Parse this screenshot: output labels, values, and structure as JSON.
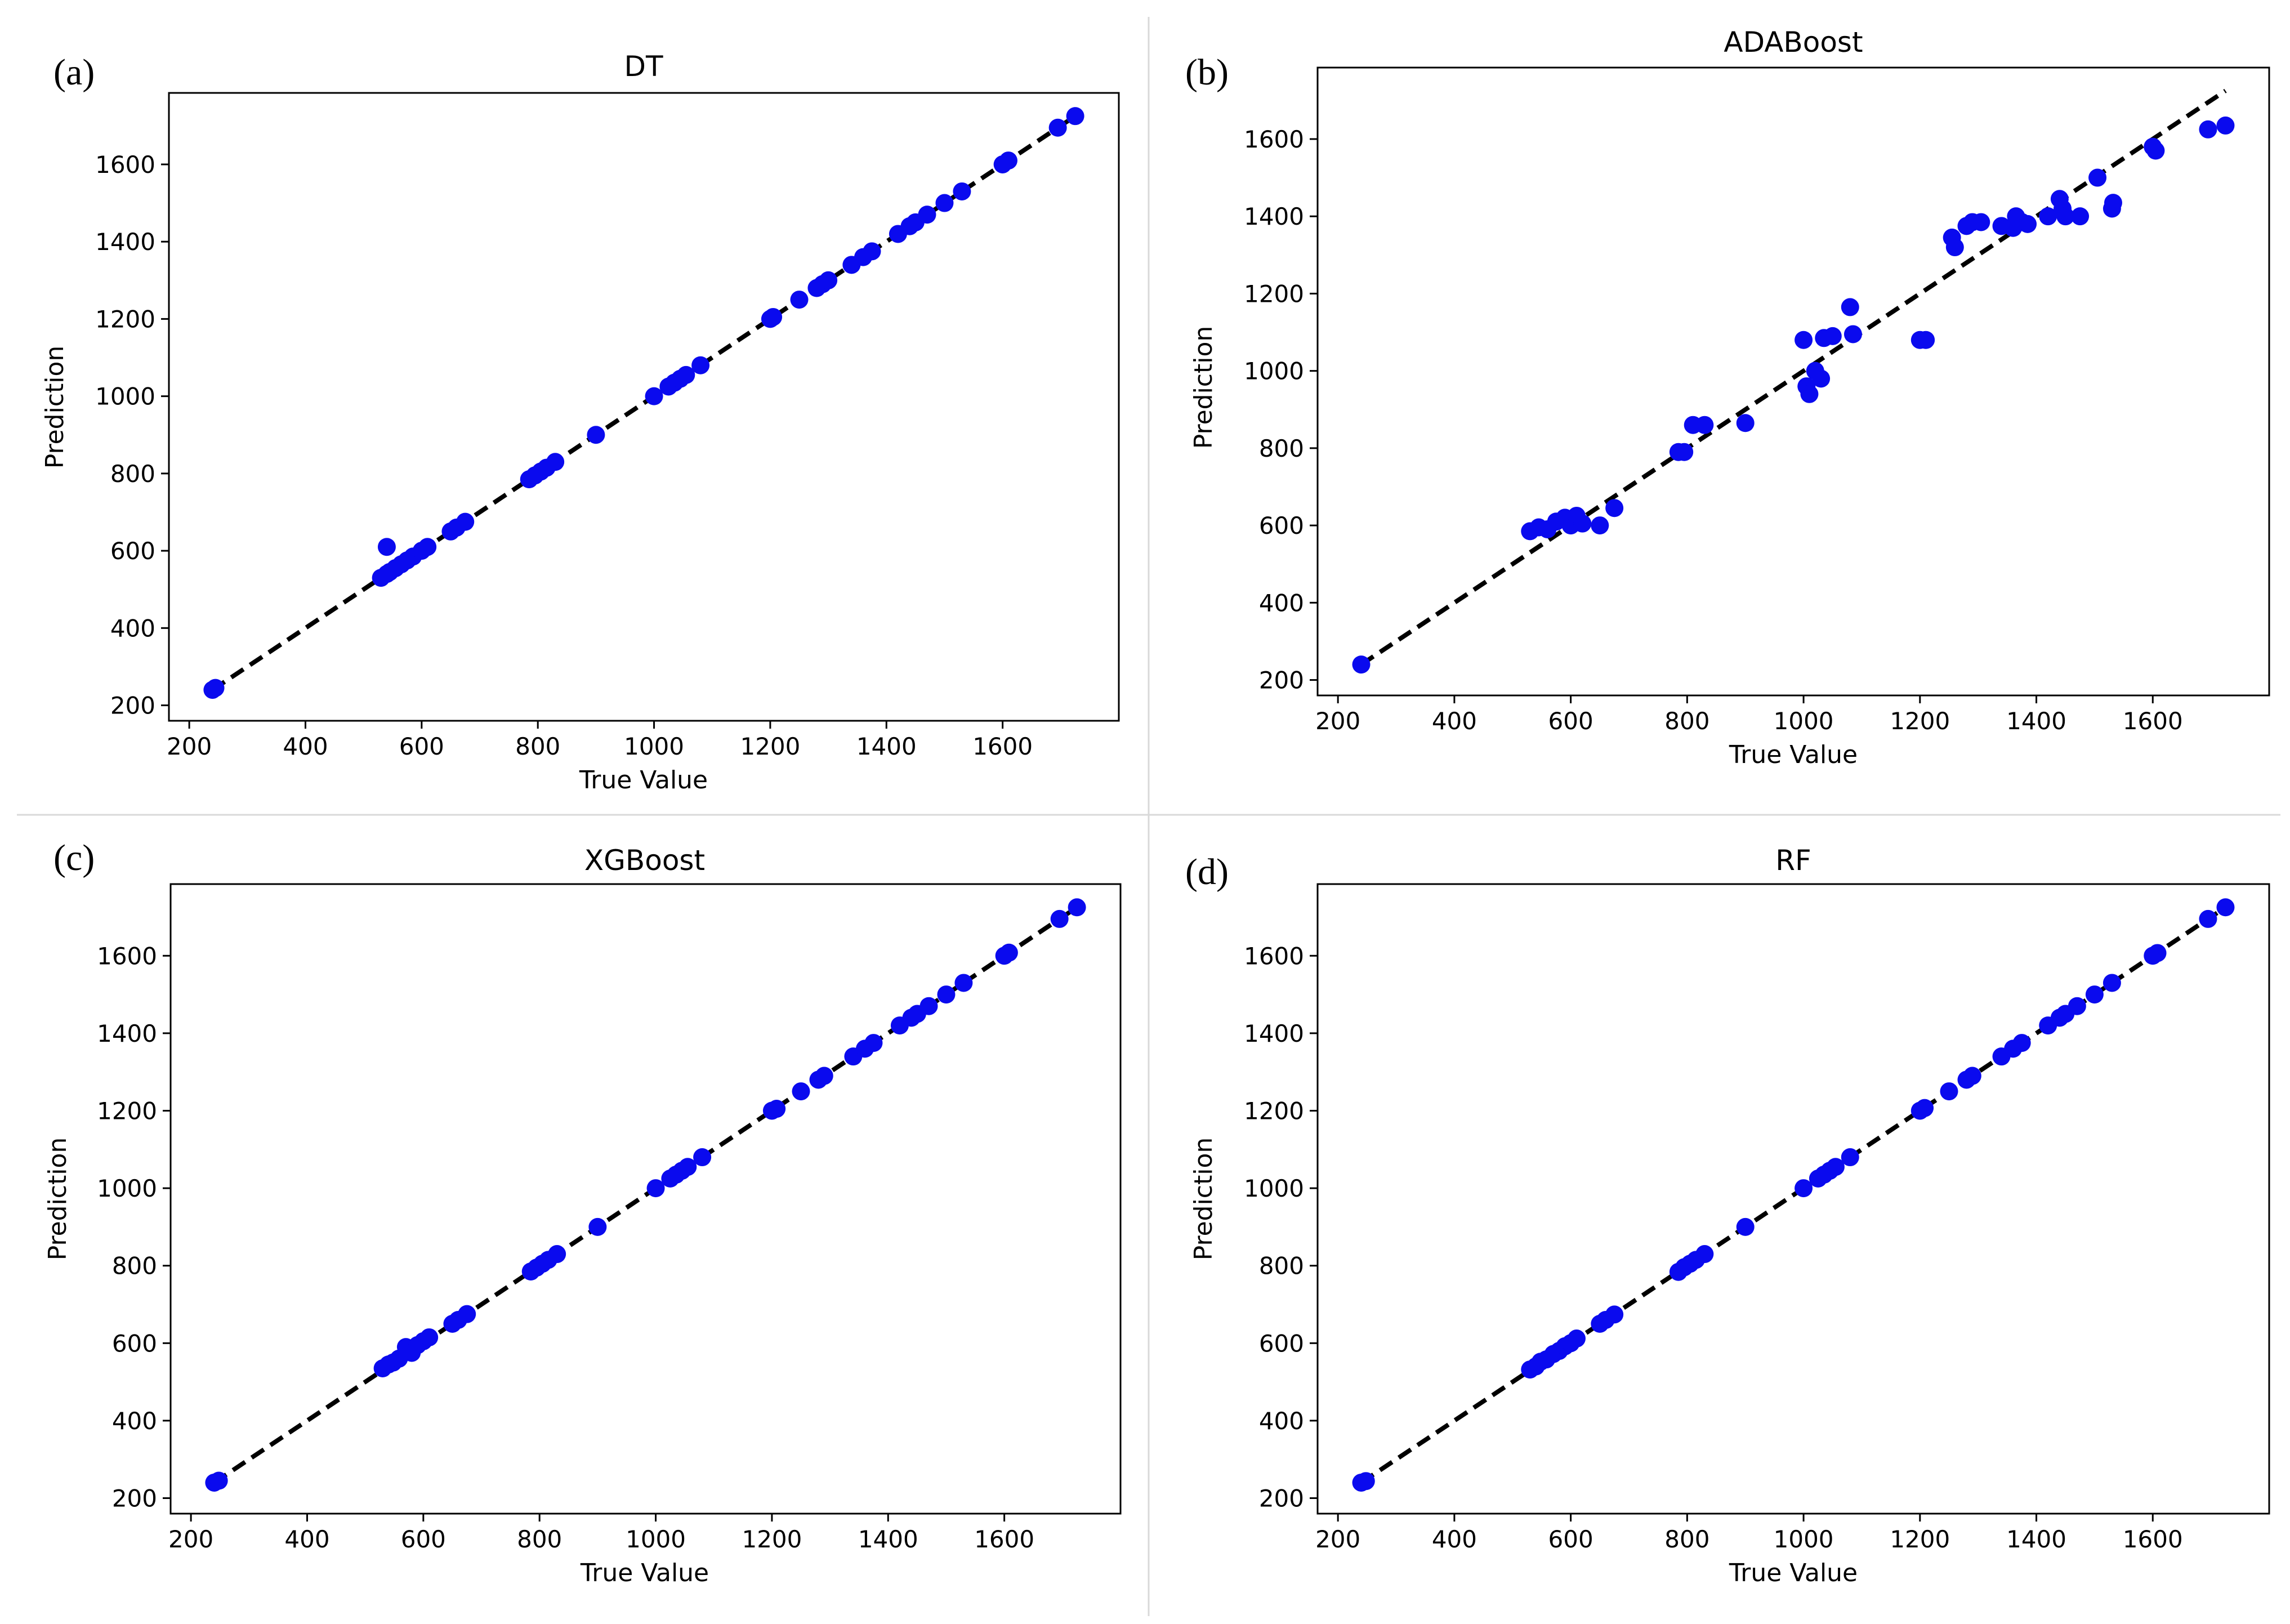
{
  "colors": {
    "points": "#0a0aee",
    "reference_line": "#000000",
    "frame": "#000000",
    "divider": "#d9d9d9"
  },
  "chart_data": [
    {
      "id": "a",
      "panel_label": "(a)",
      "type": "scatter",
      "title": "DT",
      "xlabel": "True Value",
      "ylabel": "Prediction",
      "xlim": [
        165,
        1800
      ],
      "ylim": [
        160,
        1785
      ],
      "xticks": [
        200,
        400,
        600,
        800,
        1000,
        1200,
        1400,
        1600
      ],
      "yticks": [
        200,
        400,
        600,
        800,
        1000,
        1200,
        1400,
        1600
      ],
      "reference_line": {
        "x": [
          240,
          1725
        ],
        "y": [
          240,
          1725
        ],
        "style": "dashed"
      },
      "points": {
        "x": [
          240,
          245,
          530,
          540,
          545,
          555,
          565,
          575,
          585,
          600,
          610,
          540,
          650,
          660,
          675,
          785,
          795,
          805,
          815,
          830,
          900,
          1000,
          1025,
          1035,
          1045,
          1055,
          1080,
          1200,
          1205,
          1250,
          1280,
          1290,
          1300,
          1340,
          1360,
          1375,
          1420,
          1440,
          1450,
          1470,
          1500,
          1530,
          1600,
          1610,
          1695,
          1725
        ],
        "y": [
          240,
          245,
          530,
          540,
          545,
          555,
          565,
          575,
          585,
          600,
          610,
          610,
          650,
          660,
          675,
          785,
          795,
          805,
          815,
          830,
          900,
          1000,
          1025,
          1035,
          1045,
          1055,
          1080,
          1200,
          1205,
          1250,
          1280,
          1290,
          1300,
          1340,
          1360,
          1375,
          1420,
          1440,
          1450,
          1470,
          1500,
          1530,
          1600,
          1610,
          1695,
          1725
        ]
      }
    },
    {
      "id": "b",
      "panel_label": "(b)",
      "type": "scatter",
      "title": "ADABoost",
      "xlabel": "True Value",
      "ylabel": "Prediction",
      "xlim": [
        165,
        1800
      ],
      "ylim": [
        160,
        1785
      ],
      "xticks": [
        200,
        400,
        600,
        800,
        1000,
        1200,
        1400,
        1600
      ],
      "yticks": [
        200,
        400,
        600,
        800,
        1000,
        1200,
        1400,
        1600
      ],
      "reference_line": {
        "x": [
          240,
          1725
        ],
        "y": [
          240,
          1725
        ],
        "style": "dashed"
      },
      "points": {
        "x": [
          240,
          530,
          545,
          560,
          575,
          590,
          600,
          610,
          620,
          650,
          675,
          785,
          795,
          810,
          830,
          900,
          1000,
          1005,
          1010,
          1020,
          1030,
          1035,
          1050,
          1080,
          1085,
          1200,
          1210,
          1255,
          1260,
          1280,
          1290,
          1305,
          1340,
          1360,
          1365,
          1375,
          1385,
          1420,
          1440,
          1445,
          1450,
          1475,
          1505,
          1530,
          1532,
          1600,
          1605,
          1695,
          1725
        ],
        "y": [
          240,
          585,
          595,
          590,
          610,
          620,
          600,
          625,
          605,
          600,
          645,
          790,
          790,
          860,
          860,
          865,
          1080,
          960,
          940,
          1000,
          980,
          1085,
          1090,
          1165,
          1095,
          1080,
          1080,
          1345,
          1320,
          1375,
          1385,
          1385,
          1375,
          1370,
          1400,
          1385,
          1380,
          1400,
          1445,
          1420,
          1400,
          1400,
          1500,
          1420,
          1435,
          1580,
          1570,
          1625,
          1635
        ]
      }
    },
    {
      "id": "c",
      "panel_label": "(c)",
      "type": "scatter",
      "title": "XGBoost",
      "xlabel": "True Value",
      "ylabel": "Prediction",
      "xlim": [
        165,
        1800
      ],
      "ylim": [
        160,
        1785
      ],
      "xticks": [
        200,
        400,
        600,
        800,
        1000,
        1200,
        1400,
        1600
      ],
      "yticks": [
        200,
        400,
        600,
        800,
        1000,
        1200,
        1400,
        1600
      ],
      "reference_line": {
        "x": [
          240,
          1725
        ],
        "y": [
          240,
          1725
        ],
        "style": "dashed"
      },
      "points": {
        "x": [
          240,
          248,
          530,
          540,
          548,
          558,
          570,
          580,
          590,
          600,
          610,
          650,
          660,
          675,
          785,
          795,
          805,
          815,
          830,
          900,
          1000,
          1025,
          1035,
          1045,
          1055,
          1080,
          1200,
          1208,
          1250,
          1280,
          1290,
          1340,
          1360,
          1375,
          1420,
          1440,
          1450,
          1470,
          1500,
          1530,
          1600,
          1608,
          1695,
          1725
        ],
        "y": [
          240,
          245,
          535,
          545,
          550,
          560,
          590,
          575,
          595,
          605,
          615,
          650,
          660,
          675,
          785,
          795,
          805,
          815,
          830,
          900,
          1000,
          1025,
          1035,
          1045,
          1055,
          1080,
          1200,
          1205,
          1250,
          1280,
          1290,
          1340,
          1360,
          1375,
          1420,
          1440,
          1450,
          1470,
          1500,
          1530,
          1600,
          1608,
          1695,
          1725
        ]
      }
    },
    {
      "id": "d",
      "panel_label": "(d)",
      "type": "scatter",
      "title": "RF",
      "xlabel": "True Value",
      "ylabel": "Prediction",
      "xlim": [
        165,
        1800
      ],
      "ylim": [
        160,
        1785
      ],
      "xticks": [
        200,
        400,
        600,
        800,
        1000,
        1200,
        1400,
        1600
      ],
      "yticks": [
        200,
        400,
        600,
        800,
        1000,
        1200,
        1400,
        1600
      ],
      "reference_line": {
        "x": [
          240,
          1725
        ],
        "y": [
          240,
          1725
        ],
        "style": "dashed"
      },
      "points": {
        "x": [
          240,
          248,
          530,
          540,
          548,
          558,
          570,
          580,
          590,
          600,
          610,
          650,
          660,
          675,
          785,
          795,
          805,
          815,
          830,
          900,
          1000,
          1025,
          1035,
          1045,
          1055,
          1080,
          1200,
          1208,
          1250,
          1280,
          1290,
          1340,
          1360,
          1375,
          1420,
          1440,
          1450,
          1470,
          1500,
          1530,
          1600,
          1608,
          1695,
          1725
        ],
        "y": [
          240,
          244,
          532,
          540,
          552,
          558,
          572,
          580,
          592,
          600,
          612,
          650,
          660,
          674,
          784,
          796,
          805,
          815,
          830,
          900,
          1000,
          1025,
          1035,
          1045,
          1055,
          1080,
          1200,
          1207,
          1250,
          1280,
          1290,
          1340,
          1360,
          1375,
          1420,
          1440,
          1450,
          1470,
          1500,
          1530,
          1600,
          1607,
          1695,
          1725
        ]
      }
    }
  ]
}
